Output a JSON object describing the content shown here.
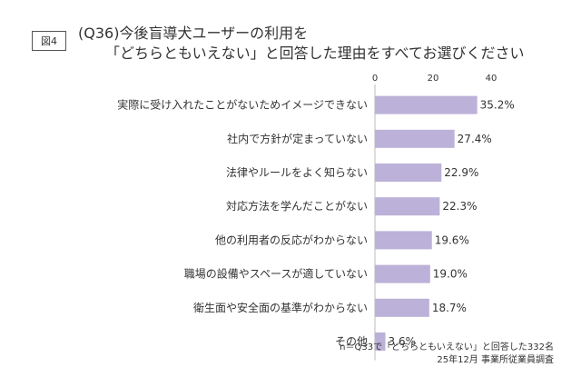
{
  "figure_tag": "図4",
  "title": {
    "line1": "(Q36)今後盲導犬ユーザーの利用を",
    "line2": "「どちらともいえない」と回答した理由をすべてお選びください"
  },
  "footnote": {
    "line1": "n＝Q33で「どちらともいえない」と回答した332名",
    "line2": "25年12月 事業所従業員調査"
  },
  "chart_data": {
    "type": "bar",
    "orientation": "horizontal",
    "title": "",
    "xlabel": "",
    "ylabel": "",
    "xlim": [
      0,
      40
    ],
    "x_ticks": [
      0,
      20,
      40
    ],
    "x_tick_labels": [
      "0",
      "20",
      "40"
    ],
    "grid": false,
    "bar_color": "#bcb1d8",
    "categories": [
      "実際に受け入れたことがないためイメージできない",
      "社内で方針が定まっていない",
      "法律やルールをよく知らない",
      "対応方法を学んだことがない",
      "他の利用者の反応がわからない",
      "職場の設備やスペースが適していない",
      "衛生面や安全面の基準がわからない",
      "その他"
    ],
    "values": [
      35.2,
      27.4,
      22.9,
      22.3,
      19.6,
      19.0,
      18.7,
      3.6
    ],
    "value_labels": [
      "35.2%",
      "27.4%",
      "22.9%",
      "22.3%",
      "19.6%",
      "19.0%",
      "18.7%",
      "3.6%"
    ]
  }
}
